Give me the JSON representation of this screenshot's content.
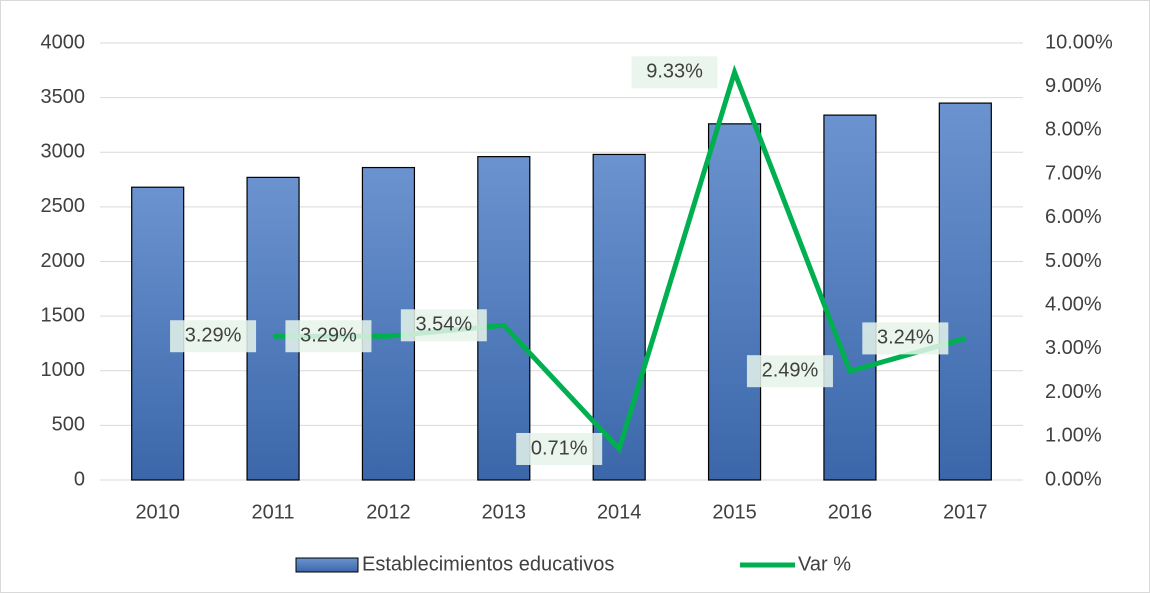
{
  "chart_data": {
    "type": "bar_line",
    "categories": [
      "2010",
      "2011",
      "2012",
      "2013",
      "2014",
      "2015",
      "2016",
      "2017"
    ],
    "series": [
      {
        "name": "Establecimientos educativos",
        "type": "bar",
        "color": "#4f7fc0",
        "values": [
          2680,
          2770,
          2860,
          2960,
          2980,
          3260,
          3340,
          3450
        ]
      },
      {
        "name": "Var %",
        "type": "line",
        "axis": "y2",
        "color": "#00b050",
        "values": [
          null,
          3.29,
          3.29,
          3.54,
          0.71,
          9.33,
          2.49,
          3.24
        ],
        "value_labels": [
          null,
          "3.29%",
          "3.29%",
          "3.54%",
          "0.71%",
          "9.33%",
          "2.49%",
          "3.24%"
        ]
      }
    ],
    "ylim": [
      0,
      4000
    ],
    "yticks": [
      0,
      500,
      1000,
      1500,
      2000,
      2500,
      3000,
      3500,
      4000
    ],
    "y2lim": [
      0,
      10
    ],
    "y2ticks": [
      {
        "value": 0,
        "label": "0.00%"
      },
      {
        "value": 1,
        "label": "1.00%"
      },
      {
        "value": 2,
        "label": "2.00%"
      },
      {
        "value": 3,
        "label": "3.00%"
      },
      {
        "value": 4,
        "label": "4.00%"
      },
      {
        "value": 5,
        "label": "5.00%"
      },
      {
        "value": 6,
        "label": "6.00%"
      },
      {
        "value": 7,
        "label": "7.00%"
      },
      {
        "value": 8,
        "label": "8.00%"
      },
      {
        "value": 9,
        "label": "9.00%"
      },
      {
        "value": 10,
        "label": "10.00%"
      }
    ],
    "grid": true,
    "legend": "bottom"
  }
}
